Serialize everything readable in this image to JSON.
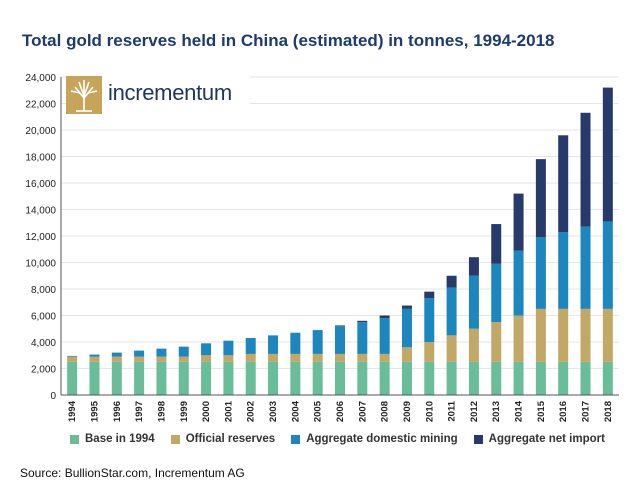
{
  "title": "Total gold reserves held in China (estimated) in tonnes, 1994-2018",
  "source": "Source: BullionStar.com, Incrementum AG",
  "logo": {
    "text": "incrementum"
  },
  "colors": {
    "base": "#69bd98",
    "official": "#c2a867",
    "mining": "#1c87bf",
    "import": "#283a69",
    "logo_gold": "#c6a55a"
  },
  "chart_data": {
    "type": "bar",
    "stacked": true,
    "title": "Total gold reserves held in China (estimated) in tonnes, 1994-2018",
    "categories": [
      "1994",
      "1995",
      "1996",
      "1997",
      "1998",
      "1999",
      "2000",
      "2001",
      "2002",
      "2003",
      "2004",
      "2005",
      "2006",
      "2007",
      "2008",
      "2009",
      "2010",
      "2011",
      "2012",
      "2013",
      "2014",
      "2015",
      "2016",
      "2017",
      "2018"
    ],
    "ylim": [
      0,
      24000
    ],
    "yticks": [
      0,
      2000,
      4000,
      6000,
      8000,
      10000,
      12000,
      14000,
      16000,
      18000,
      20000,
      22000,
      24000
    ],
    "ytick_labels": [
      "0",
      "2,000",
      "4,000",
      "6,000",
      "8,000",
      "10,000",
      "12,000",
      "14,000",
      "16,000",
      "18,000",
      "20,000",
      "22,000",
      "24,000"
    ],
    "legend_position": "bottom",
    "series": [
      {
        "name": "Base in 1994",
        "color_key": "base",
        "values": [
          2500,
          2500,
          2500,
          2500,
          2500,
          2500,
          2500,
          2500,
          2500,
          2500,
          2500,
          2500,
          2500,
          2500,
          2500,
          2500,
          2500,
          2500,
          2500,
          2500,
          2500,
          2500,
          2500,
          2500,
          2500
        ]
      },
      {
        "name": "Official reserves",
        "color_key": "official",
        "values": [
          400,
          400,
          400,
          400,
          400,
          400,
          500,
          500,
          600,
          600,
          600,
          600,
          600,
          600,
          600,
          1100,
          1500,
          2000,
          2500,
          3000,
          3500,
          4000,
          4000,
          4000,
          4000
        ]
      },
      {
        "name": "Aggregate domestic mining",
        "color_key": "mining",
        "values": [
          50,
          150,
          300,
          450,
          600,
          750,
          900,
          1100,
          1200,
          1400,
          1600,
          1800,
          2100,
          2400,
          2700,
          2900,
          3300,
          3600,
          4000,
          4400,
          4900,
          5400,
          5800,
          6200,
          6600
        ]
      },
      {
        "name": "Aggregate net import",
        "color_key": "import",
        "values": [
          0,
          0,
          0,
          0,
          0,
          0,
          0,
          0,
          0,
          0,
          0,
          0,
          50,
          100,
          200,
          250,
          500,
          900,
          1400,
          3000,
          4300,
          5900,
          7300,
          8600,
          10100
        ]
      }
    ]
  }
}
